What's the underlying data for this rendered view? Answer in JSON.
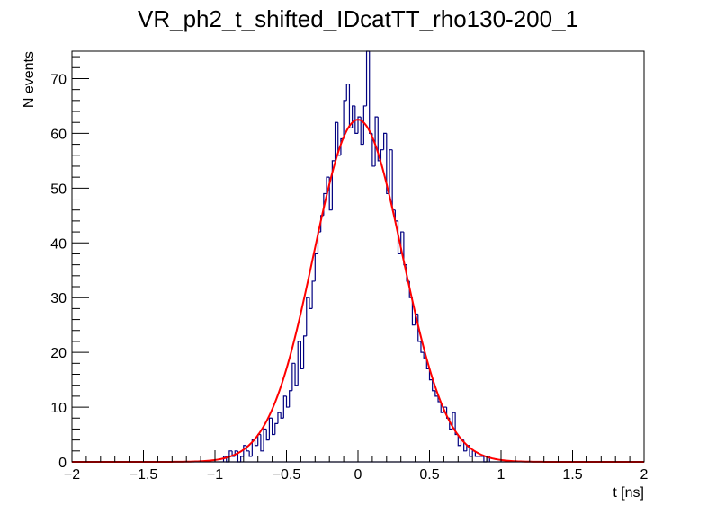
{
  "title": "VR_ph2_t_shifted_IDcatTT_rho130-200_1",
  "chart_data": {
    "type": "histogram",
    "title": "VR_ph2_t_shifted_IDcatTT_rho130-200_1",
    "xlabel": "t [ns]",
    "ylabel": "N events",
    "xlim": [
      -2,
      2
    ],
    "ylim": [
      0,
      75
    ],
    "x_ticks": [
      -2,
      -1.5,
      -1,
      -0.5,
      0,
      0.5,
      1,
      1.5,
      2
    ],
    "x_tick_labels": [
      "−2",
      "−1.5",
      "−1",
      "−0.5",
      "0",
      "0.5",
      "1",
      "1.5",
      "2"
    ],
    "y_ticks": [
      0,
      10,
      20,
      30,
      40,
      50,
      60,
      70
    ],
    "y_tick_labels": [
      "0",
      "10",
      "20",
      "30",
      "40",
      "50",
      "60",
      "70"
    ],
    "grid": false,
    "bin_width": 0.02,
    "bins": [
      {
        "x0": -0.94,
        "y": 1
      },
      {
        "x0": -0.92,
        "y": 0
      },
      {
        "x0": -0.9,
        "y": 2
      },
      {
        "x0": -0.88,
        "y": 1
      },
      {
        "x0": -0.86,
        "y": 2
      },
      {
        "x0": -0.84,
        "y": 0
      },
      {
        "x0": -0.82,
        "y": 1
      },
      {
        "x0": -0.8,
        "y": 3
      },
      {
        "x0": -0.78,
        "y": 2
      },
      {
        "x0": -0.76,
        "y": 1
      },
      {
        "x0": -0.74,
        "y": 4
      },
      {
        "x0": -0.72,
        "y": 3
      },
      {
        "x0": -0.7,
        "y": 5
      },
      {
        "x0": -0.68,
        "y": 2
      },
      {
        "x0": -0.66,
        "y": 6
      },
      {
        "x0": -0.64,
        "y": 4
      },
      {
        "x0": -0.62,
        "y": 8
      },
      {
        "x0": -0.6,
        "y": 5
      },
      {
        "x0": -0.58,
        "y": 7
      },
      {
        "x0": -0.56,
        "y": 9
      },
      {
        "x0": -0.54,
        "y": 8
      },
      {
        "x0": -0.52,
        "y": 12
      },
      {
        "x0": -0.5,
        "y": 10
      },
      {
        "x0": -0.48,
        "y": 13
      },
      {
        "x0": -0.46,
        "y": 18
      },
      {
        "x0": -0.44,
        "y": 14
      },
      {
        "x0": -0.42,
        "y": 22
      },
      {
        "x0": -0.4,
        "y": 17
      },
      {
        "x0": -0.38,
        "y": 23
      },
      {
        "x0": -0.36,
        "y": 30
      },
      {
        "x0": -0.34,
        "y": 28
      },
      {
        "x0": -0.32,
        "y": 33
      },
      {
        "x0": -0.3,
        "y": 38
      },
      {
        "x0": -0.28,
        "y": 42
      },
      {
        "x0": -0.26,
        "y": 45
      },
      {
        "x0": -0.24,
        "y": 49
      },
      {
        "x0": -0.22,
        "y": 52
      },
      {
        "x0": -0.2,
        "y": 46
      },
      {
        "x0": -0.18,
        "y": 55
      },
      {
        "x0": -0.16,
        "y": 62
      },
      {
        "x0": -0.14,
        "y": 56
      },
      {
        "x0": -0.12,
        "y": 59
      },
      {
        "x0": -0.1,
        "y": 66
      },
      {
        "x0": -0.08,
        "y": 69
      },
      {
        "x0": -0.06,
        "y": 61
      },
      {
        "x0": -0.04,
        "y": 65
      },
      {
        "x0": -0.02,
        "y": 60
      },
      {
        "x0": 0.0,
        "y": 63
      },
      {
        "x0": 0.02,
        "y": 58
      },
      {
        "x0": 0.04,
        "y": 65
      },
      {
        "x0": 0.06,
        "y": 75
      },
      {
        "x0": 0.08,
        "y": 60
      },
      {
        "x0": 0.1,
        "y": 54
      },
      {
        "x0": 0.12,
        "y": 63
      },
      {
        "x0": 0.14,
        "y": 55
      },
      {
        "x0": 0.16,
        "y": 57
      },
      {
        "x0": 0.18,
        "y": 60
      },
      {
        "x0": 0.2,
        "y": 49
      },
      {
        "x0": 0.22,
        "y": 57
      },
      {
        "x0": 0.24,
        "y": 46
      },
      {
        "x0": 0.26,
        "y": 44
      },
      {
        "x0": 0.28,
        "y": 38
      },
      {
        "x0": 0.3,
        "y": 42
      },
      {
        "x0": 0.32,
        "y": 36
      },
      {
        "x0": 0.34,
        "y": 33
      },
      {
        "x0": 0.36,
        "y": 30
      },
      {
        "x0": 0.38,
        "y": 25
      },
      {
        "x0": 0.4,
        "y": 27
      },
      {
        "x0": 0.42,
        "y": 22
      },
      {
        "x0": 0.44,
        "y": 20
      },
      {
        "x0": 0.46,
        "y": 19
      },
      {
        "x0": 0.48,
        "y": 17
      },
      {
        "x0": 0.5,
        "y": 15
      },
      {
        "x0": 0.52,
        "y": 13
      },
      {
        "x0": 0.54,
        "y": 12
      },
      {
        "x0": 0.56,
        "y": 11
      },
      {
        "x0": 0.58,
        "y": 9
      },
      {
        "x0": 0.6,
        "y": 10
      },
      {
        "x0": 0.62,
        "y": 8
      },
      {
        "x0": 0.64,
        "y": 6
      },
      {
        "x0": 0.66,
        "y": 9
      },
      {
        "x0": 0.68,
        "y": 5
      },
      {
        "x0": 0.7,
        "y": 3
      },
      {
        "x0": 0.72,
        "y": 4
      },
      {
        "x0": 0.74,
        "y": 2
      },
      {
        "x0": 0.76,
        "y": 3
      },
      {
        "x0": 0.78,
        "y": 1
      },
      {
        "x0": 0.8,
        "y": 2
      },
      {
        "x0": 0.82,
        "y": 1
      },
      {
        "x0": 0.84,
        "y": 1
      },
      {
        "x0": 0.86,
        "y": 1
      },
      {
        "x0": 0.88,
        "y": 0
      },
      {
        "x0": 0.9,
        "y": 1
      }
    ],
    "fit": {
      "type": "gaussian",
      "amplitude": 62.5,
      "mean": 0.0,
      "sigma": 0.31
    },
    "colors": {
      "histogram": "#000080",
      "fit": "#ff0000",
      "frame": "#000000"
    }
  }
}
